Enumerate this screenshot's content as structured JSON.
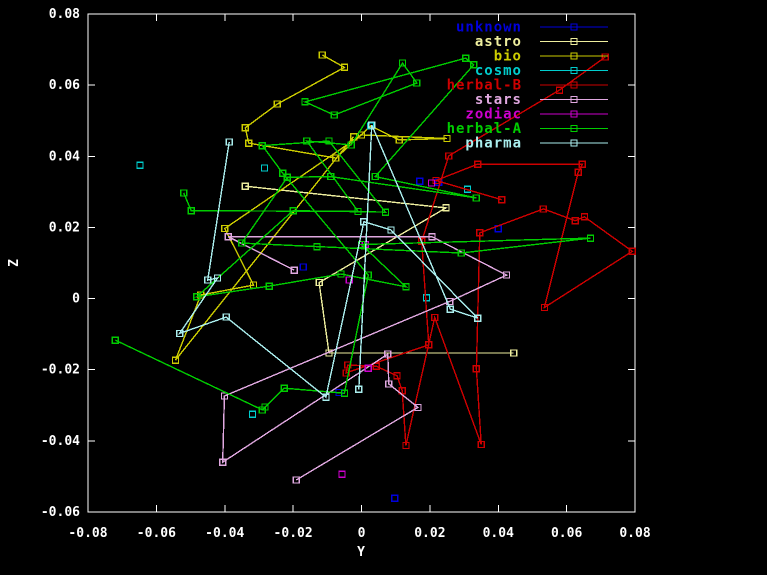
{
  "window": {
    "background": "#000000",
    "axis_color": "#ffffff"
  },
  "chart_data": {
    "type": "line",
    "title": "",
    "xlabel": "Y",
    "ylabel": "Z",
    "xlim": [
      -0.08,
      0.08
    ],
    "ylim": [
      -0.06,
      0.08
    ],
    "x_ticks": [
      "-0.08",
      "-0.06",
      "-0.04",
      "-0.02",
      "0",
      "0.02",
      "0.04",
      "0.06",
      "0.08"
    ],
    "y_ticks": [
      "-0.06",
      "-0.04",
      "-0.02",
      "0",
      "0.02",
      "0.04",
      "0.06",
      "0.08"
    ],
    "grid": false,
    "legend_position": "top-right",
    "marker": "open-square",
    "series": [
      {
        "name": "unknown",
        "color": "#0000dd",
        "style": "points",
        "points": [
          [
            0.017,
            0.033
          ],
          [
            0.0226,
            0.0327
          ],
          [
            0.04,
            0.0196
          ],
          [
            -0.017,
            0.0089
          ],
          [
            -0.0066,
            -0.0264
          ],
          [
            0.0097,
            -0.0561
          ]
        ]
      },
      {
        "name": "astro",
        "color": "#eeee9e",
        "style": "linespoints",
        "points": [
          [
            -0.034,
            0.0316
          ],
          [
            0.0247,
            0.0255
          ],
          [
            -0.0124,
            0.0045
          ],
          [
            -0.0095,
            -0.0153
          ],
          [
            0.0445,
            -0.0153
          ]
        ]
      },
      {
        "name": "bio",
        "color": "#cdcd00",
        "style": "linespoints",
        "points": [
          [
            -0.0115,
            0.0685
          ],
          [
            -0.005,
            0.065
          ],
          [
            -0.0246,
            0.0547
          ],
          [
            -0.034,
            0.048
          ],
          [
            -0.033,
            0.0437
          ],
          [
            -0.0075,
            0.0395
          ],
          [
            0.0027,
            0.0485
          ],
          [
            0.011,
            0.0446
          ],
          [
            0.025,
            0.045
          ],
          [
            0.0,
            0.046
          ],
          [
            -0.04,
            0.0197
          ],
          [
            -0.0316,
            0.0038
          ],
          [
            -0.047,
            0.001
          ],
          [
            -0.0544,
            -0.0173
          ],
          [
            -0.0023,
            0.0455
          ]
        ]
      },
      {
        "name": "cosmo",
        "color": "#00cdcd",
        "style": "points",
        "points": [
          [
            -0.0648,
            0.0375
          ],
          [
            -0.0284,
            0.0367
          ],
          [
            0.0027,
            0.0485
          ],
          [
            0.031,
            0.0307
          ],
          [
            0.019,
            0.0002
          ],
          [
            -0.0319,
            -0.0325
          ]
        ]
      },
      {
        "name": "herbal-B",
        "color": "#cd0000",
        "style": "linespoints",
        "points": [
          [
            0.0713,
            0.0679
          ],
          [
            0.0579,
            0.0586
          ],
          [
            0.0255,
            0.0401
          ],
          [
            0.0176,
            0.0161
          ],
          [
            0.0197,
            -0.013
          ],
          [
            -0.0045,
            -0.0209
          ],
          [
            -0.004,
            -0.0187
          ],
          [
            0.0043,
            -0.019
          ],
          [
            0.0104,
            -0.0217
          ],
          [
            0.0119,
            -0.0259
          ],
          [
            0.013,
            -0.0413
          ],
          [
            0.0214,
            -0.0053
          ],
          [
            0.035,
            -0.041
          ],
          [
            0.0336,
            -0.0197
          ],
          [
            0.0346,
            0.0185
          ],
          [
            0.0532,
            0.0252
          ],
          [
            0.0625,
            0.0219
          ],
          [
            0.0652,
            0.023
          ],
          [
            0.0792,
            0.0133
          ],
          [
            0.0535,
            -0.0025
          ],
          [
            0.0634,
            0.0355
          ],
          [
            0.0646,
            0.0378
          ],
          [
            0.034,
            0.0378
          ],
          [
            0.0218,
            0.0332
          ],
          [
            0.041,
            0.0278
          ]
        ]
      },
      {
        "name": "stars",
        "color": "#e0a8e0",
        "style": "linespoints",
        "points": [
          [
            -0.0197,
            0.008
          ],
          [
            -0.039,
            0.0174
          ],
          [
            0.0206,
            0.0174
          ],
          [
            0.0424,
            0.0066
          ],
          [
            0.0258,
            -0.0008
          ],
          [
            -0.0401,
            -0.0274
          ],
          [
            -0.0406,
            -0.046
          ],
          [
            0.0077,
            -0.0156
          ],
          [
            0.008,
            -0.024
          ],
          [
            0.0165,
            -0.0306
          ],
          [
            -0.0191,
            -0.051
          ]
        ]
      },
      {
        "name": "zodiac",
        "color": "#cd00cd",
        "style": "points",
        "points": [
          [
            0.0205,
            0.0325
          ],
          [
            0.0011,
            0.0152
          ],
          [
            -0.0036,
            0.0052
          ],
          [
            0.002,
            -0.0196
          ],
          [
            -0.0057,
            -0.0494
          ]
        ]
      },
      {
        "name": "herbal-A",
        "color": "#00cc00",
        "style": "linespoints",
        "points": [
          [
            -0.052,
            0.0297
          ],
          [
            -0.0498,
            0.0247
          ],
          [
            -0.001,
            0.0245
          ],
          [
            -0.016,
            0.0443
          ],
          [
            -0.003,
            0.0432
          ],
          [
            0.012,
            0.0662
          ],
          [
            0.0162,
            0.0606
          ],
          [
            -0.008,
            0.0516
          ],
          [
            -0.0165,
            0.0553
          ],
          [
            0.0305,
            0.0676
          ],
          [
            0.0328,
            0.0657
          ],
          [
            0.004,
            0.0343
          ],
          [
            0.0336,
            0.0283
          ],
          [
            -0.009,
            0.0343
          ],
          [
            -0.0217,
            0.0341
          ],
          [
            -0.035,
            0.0156
          ],
          [
            -0.013,
            0.0146
          ],
          [
            0.0292,
            0.0128
          ],
          [
            0.067,
            0.017
          ],
          [
            0.0,
            0.0152
          ],
          [
            0.013,
            0.0033
          ],
          [
            -0.006,
            0.0069
          ],
          [
            -0.027,
            0.0035
          ],
          [
            -0.0482,
            0.0005
          ],
          [
            -0.02,
            0.0247
          ],
          [
            0.007,
            0.0243
          ],
          [
            -0.0095,
            0.0443
          ],
          [
            -0.029,
            0.043
          ],
          [
            -0.023,
            0.0352
          ],
          [
            0.002,
            0.0066
          ],
          [
            -0.005,
            -0.0266
          ],
          [
            -0.0226,
            -0.0252
          ],
          [
            -0.0282,
            -0.0305
          ],
          [
            -0.029,
            -0.0313
          ],
          [
            -0.072,
            -0.0117
          ]
        ]
      },
      {
        "name": "pharma",
        "color": "#aaeeee",
        "style": "linespoints",
        "points": [
          [
            -0.0387,
            0.044
          ],
          [
            -0.045,
            0.0052
          ],
          [
            -0.0421,
            0.0058
          ],
          [
            -0.0532,
            -0.0098
          ],
          [
            -0.0396,
            -0.0052
          ],
          [
            -0.0104,
            -0.0277
          ],
          [
            0.0007,
            0.0216
          ],
          [
            0.0086,
            0.0193
          ],
          [
            0.034,
            -0.0055
          ],
          [
            0.026,
            -0.003
          ],
          [
            0.003,
            0.0488
          ],
          [
            -0.0008,
            -0.0255
          ]
        ]
      }
    ]
  }
}
